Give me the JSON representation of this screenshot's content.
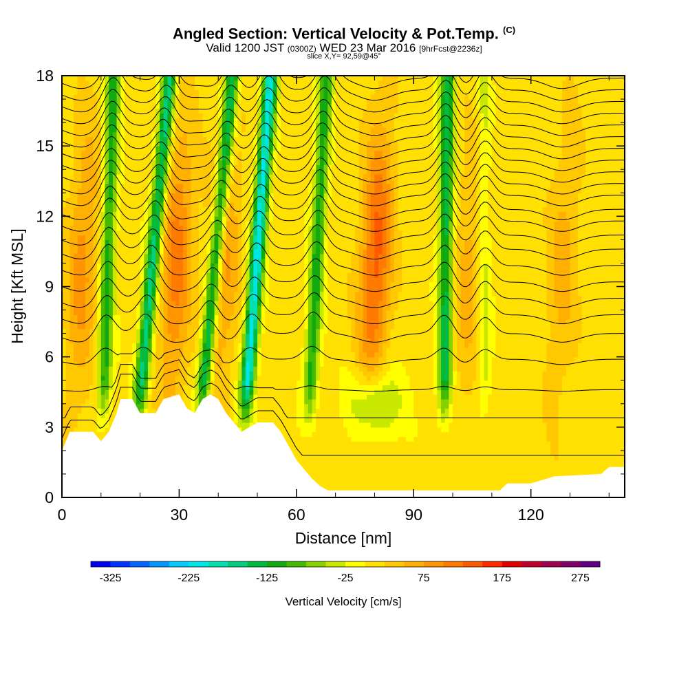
{
  "header": {
    "title": "Angled Section: Vertical Velocity & Pot.Temp.",
    "title_sup": "(C)",
    "subtitle_a": "Valid 1200 JST",
    "subtitle_b": "(0300Z)",
    "subtitle_c": "WED 23 Mar 2016",
    "subtitle_d": "[9hrFcst@2236z]",
    "slice": "slice X,Y= 92,59@45°"
  },
  "chart_data": {
    "type": "heatmap",
    "xlabel": "Distance [nm]",
    "ylabel": "Height [Kft MSL]",
    "xlim": [
      0,
      144
    ],
    "ylim": [
      0,
      18
    ],
    "x_ticks": [
      0,
      30,
      60,
      90,
      120
    ],
    "y_ticks": [
      0,
      3,
      6,
      9,
      12,
      15,
      18
    ],
    "colorbar": {
      "title": "Vertical Velocity [cm/s]",
      "range": [
        -350,
        300
      ],
      "labels": [
        -325,
        -225,
        -125,
        -25,
        75,
        175,
        275
      ],
      "colors": [
        "#0000ee",
        "#0033ff",
        "#0066ff",
        "#0099ff",
        "#00ccff",
        "#00e5e5",
        "#00e0b0",
        "#00d080",
        "#00bb40",
        "#11aa11",
        "#44bb00",
        "#88d000",
        "#c8e800",
        "#ffff00",
        "#ffe000",
        "#ffc800",
        "#ffb000",
        "#ff9500",
        "#ff7a00",
        "#ff5a00",
        "#ff2a00",
        "#e00000",
        "#c0002a",
        "#a00050",
        "#80006a",
        "#600080"
      ]
    },
    "terrain_kft": [
      [
        0,
        2.0
      ],
      [
        2,
        2.8
      ],
      [
        8,
        2.8
      ],
      [
        10,
        2.4
      ],
      [
        12,
        2.8
      ],
      [
        14,
        3.6
      ],
      [
        15,
        4.2
      ],
      [
        18,
        4.2
      ],
      [
        20,
        3.6
      ],
      [
        24,
        3.6
      ],
      [
        26,
        4.2
      ],
      [
        30,
        4.4
      ],
      [
        32,
        3.8
      ],
      [
        34,
        3.6
      ],
      [
        36,
        4.2
      ],
      [
        38,
        4.4
      ],
      [
        40,
        4.2
      ],
      [
        42,
        3.6
      ],
      [
        44,
        3.2
      ],
      [
        46,
        2.8
      ],
      [
        48,
        3.0
      ],
      [
        50,
        3.2
      ],
      [
        54,
        3.2
      ],
      [
        56,
        2.8
      ],
      [
        58,
        2.2
      ],
      [
        60,
        1.6
      ],
      [
        62,
        1.2
      ],
      [
        64,
        0.8
      ],
      [
        66,
        0.5
      ],
      [
        68,
        0.3
      ],
      [
        90,
        0.3
      ],
      [
        112,
        0.3
      ],
      [
        114,
        0.6
      ],
      [
        120,
        0.6
      ],
      [
        126,
        0.9
      ],
      [
        138,
        1.0
      ],
      [
        140,
        1.3
      ],
      [
        144,
        1.3
      ]
    ],
    "updraft_bands": [
      {
        "x": 11,
        "tilt_nm_per_kft": 0.18,
        "value": -125
      },
      {
        "x": 21,
        "tilt_nm_per_kft": 0.55,
        "value": -175
      },
      {
        "x": 37,
        "tilt_nm_per_kft": 0.55,
        "value": -175
      },
      {
        "x": 48,
        "tilt_nm_per_kft": 0.45,
        "value": -225
      },
      {
        "x": 64,
        "tilt_nm_per_kft": 0.3,
        "value": -125
      },
      {
        "x": 98,
        "tilt_nm_per_kft": 0.05,
        "value": -150
      },
      {
        "x": 108,
        "tilt_nm_per_kft": 0.0,
        "value": -50
      }
    ],
    "downdraft_bands": [
      {
        "x": 5,
        "value": 75
      },
      {
        "x": 29,
        "value": 100
      },
      {
        "x": 41,
        "value": 75
      },
      {
        "x": 80,
        "value": 125
      },
      {
        "x": 104,
        "value": 50
      },
      {
        "x": 128,
        "value": 50
      }
    ],
    "low_level_updraft": {
      "x": 80,
      "y": 4.0,
      "value": -100
    },
    "isentrope_base_kft": [
      1.8,
      3.4,
      4.6,
      5.9,
      7.0,
      7.8,
      8.5,
      9.2,
      9.9,
      10.6,
      11.2,
      11.8,
      12.3,
      12.9,
      13.4,
      13.9,
      14.4,
      14.9,
      15.4,
      15.9,
      16.4,
      16.9,
      17.4,
      17.9
    ]
  }
}
